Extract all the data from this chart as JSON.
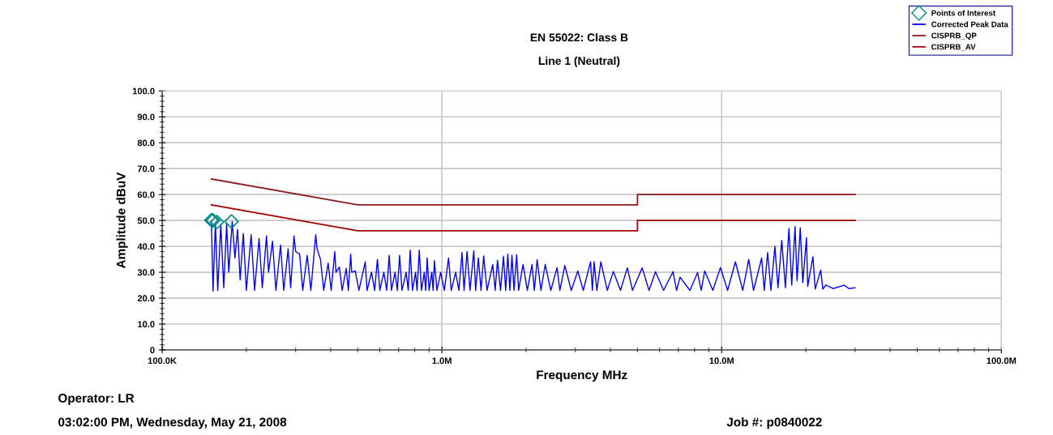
{
  "chart_data": {
    "type": "line",
    "title": "EN 55022: Class B",
    "subtitle": "Line 1 (Neutral)",
    "xlabel": "Frequency MHz",
    "ylabel": "Amplitude dBuV",
    "log": "x",
    "xlim": [
      100000,
      100000000
    ],
    "xticks": [
      {
        "value": 100000,
        "label": "100.0K"
      },
      {
        "value": 1000000,
        "label": "1.0M"
      },
      {
        "value": 10000000,
        "label": "10.0M"
      },
      {
        "value": 100000000,
        "label": "100.0M"
      }
    ],
    "ylim": [
      0,
      100
    ],
    "yticks": [
      {
        "value": 0,
        "label": "0"
      },
      {
        "value": 10,
        "label": "10.0"
      },
      {
        "value": 20,
        "label": "20.0"
      },
      {
        "value": 30,
        "label": "30.0"
      },
      {
        "value": 40,
        "label": "40.0"
      },
      {
        "value": 50,
        "label": "50.0"
      },
      {
        "value": 60,
        "label": "60.0"
      },
      {
        "value": 70,
        "label": "70.0"
      },
      {
        "value": 80,
        "label": "80.0"
      },
      {
        "value": 90,
        "label": "90.0"
      },
      {
        "value": 100,
        "label": "100.0"
      }
    ],
    "grid": true,
    "legend": "top right",
    "annotations": [
      "Operator: LR",
      "03:02:00 PM, Wednesday, May 21, 2008",
      "Job #: p0840022"
    ],
    "series": [
      {
        "name": "Points of Interest",
        "type": "scatter",
        "marker": "diamond",
        "color": "#008b8b",
        "x": [
          150000,
          152000,
          157000,
          177000
        ],
        "values": [
          50.1,
          50.0,
          49.4,
          49.6
        ]
      },
      {
        "name": "Corrected Peak Data",
        "color": "#0000ff",
        "x": [
          150000,
          152000,
          155000,
          158000,
          162000,
          166000,
          170000,
          173000,
          178000,
          182000,
          186000,
          190000,
          195000,
          200000,
          208000,
          214000,
          222000,
          228000,
          236000,
          240000,
          248000,
          255000,
          265000,
          272000,
          282000,
          288000,
          296000,
          300000,
          310000,
          318000,
          330000,
          340000,
          354000,
          358000,
          368000,
          378000,
          392000,
          402000,
          414000,
          418000,
          430000,
          440000,
          455000,
          463000,
          472000,
          476000,
          490000,
          505000,
          532000,
          540000,
          560000,
          575000,
          588000,
          600000,
          620000,
          635000,
          648000,
          660000,
          680000,
          693000,
          706000,
          720000,
          745000,
          758000,
          770000,
          785000,
          805000,
          815000,
          830000,
          845000,
          865000,
          875000,
          886000,
          900000,
          920000,
          930000,
          940000,
          960000,
          990000,
          1020000,
          1056000,
          1080000,
          1120000,
          1150000,
          1180000,
          1200000,
          1230000,
          1260000,
          1300000,
          1320000,
          1350000,
          1380000,
          1410000,
          1450000,
          1520000,
          1550000,
          1580000,
          1620000,
          1660000,
          1690000,
          1720000,
          1750000,
          1780000,
          1810000,
          1850000,
          1880000,
          1950000,
          2020000,
          2100000,
          2140000,
          2190000,
          2260000,
          2340000,
          2450000,
          2580000,
          2640000,
          2750000,
          2900000,
          3060000,
          3200000,
          3400000,
          3450000,
          3500000,
          3580000,
          3700000,
          3900000,
          4100000,
          4350000,
          4600000,
          4800000,
          5200000,
          5500000,
          5800000,
          6200000,
          6700000,
          6900000,
          7100000,
          7700000,
          8200000,
          8450000,
          8700000,
          9300000,
          9900000,
          10500000,
          11200000,
          11900000,
          12500000,
          13000000,
          13900000,
          14200000,
          14600000,
          15000000,
          15500000,
          15900000,
          16400000,
          16900000,
          17400000,
          17800000,
          18300000,
          18600000,
          19100000,
          19500000,
          20100000,
          20300000,
          21200000,
          21600000,
          22600000,
          23000000,
          23600000,
          25000000,
          27400000,
          28500000,
          30000000
        ],
        "values": [
          49.5,
          22.7,
          49.0,
          23,
          48.5,
          24,
          48.7,
          30,
          49.6,
          35.5,
          46.5,
          27,
          45.0,
          23,
          44.5,
          23,
          43.0,
          24,
          44.0,
          30,
          42.0,
          23,
          40.5,
          23,
          39.0,
          24,
          44.0,
          38,
          37.0,
          23,
          36.5,
          23,
          44.5,
          39,
          35.0,
          23,
          33.5,
          23,
          38.0,
          30,
          32.0,
          23,
          31.5,
          23,
          37.0,
          30,
          30.5,
          23,
          34.0,
          23,
          30.0,
          23,
          35.0,
          23,
          30.0,
          23,
          36.5,
          23,
          30.0,
          23,
          36.5,
          23,
          30.0,
          23,
          38.5,
          23,
          30.0,
          23,
          38.5,
          23,
          30.0,
          23,
          35.5,
          23,
          30.0,
          23,
          34.5,
          23,
          30.0,
          23,
          35.5,
          23,
          30,
          23,
          37.6,
          23,
          38.0,
          23,
          38.3,
          23,
          35.5,
          23,
          36.3,
          23,
          33.0,
          23,
          34.6,
          23,
          36.2,
          23,
          37.0,
          23,
          36.5,
          23,
          36.8,
          23,
          33.0,
          23,
          33.0,
          23,
          34.8,
          23,
          33.0,
          23,
          31.8,
          23,
          32.6,
          23,
          30.5,
          23,
          34.0,
          23,
          34.0,
          23,
          34.0,
          23,
          30.3,
          23,
          31.7,
          23,
          31.7,
          23,
          30.2,
          23,
          30.2,
          23,
          28.1,
          23,
          29.9,
          23,
          30.5,
          23,
          31.8,
          23,
          34.0,
          23,
          35.0,
          23,
          35.5,
          23,
          37.6,
          23,
          40.0,
          24,
          42.3,
          24,
          46.9,
          25,
          47.6,
          26.7,
          47.2,
          26,
          43.3,
          24.5,
          36.0,
          23.5,
          30.8,
          23.5,
          25.1,
          23.7,
          25.0,
          23.7,
          24.0
        ]
      },
      {
        "name": "CISPRB_QP",
        "color": "#8b1a1a",
        "x": [
          150000,
          500000,
          5000000,
          5000000,
          30000000
        ],
        "values": [
          66,
          56,
          56,
          60,
          60
        ]
      },
      {
        "name": "CISPRB_AV",
        "color": "#a50000",
        "x": [
          150000,
          500000,
          5000000,
          5000000,
          30000000
        ],
        "values": [
          56,
          46,
          46,
          50,
          50
        ]
      }
    ]
  }
}
